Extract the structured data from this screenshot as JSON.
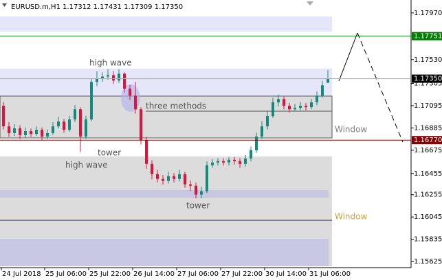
{
  "chart_data": {
    "type": "candlestick",
    "title": "EURUSD.m,H1  1.17312 1.17431 1.17309 1.17350",
    "xlim": [
      -0.625,
      74.125
    ],
    "ylim": [
      1.15567,
      1.18092
    ],
    "xticks": [
      {
        "value": -0.375,
        "label": "24 Jul 2018"
      },
      {
        "value": 7.5,
        "label": "25 Jul 06:00"
      },
      {
        "value": 15.5,
        "label": "25 Jul 22:00"
      },
      {
        "value": 23.5,
        "label": "26 Jul 14:00"
      },
      {
        "value": 31.5,
        "label": "27 Jul 06:00"
      },
      {
        "value": 39.5,
        "label": "27 Jul 22:00"
      },
      {
        "value": 47.5,
        "label": "30 Jul 14:00"
      },
      {
        "value": 55.5,
        "label": "31 Jul 06:00"
      }
    ],
    "yticks": [
      {
        "value": 1.1797,
        "label": "1.17970"
      },
      {
        "value": 1.1753,
        "label": "1.17530"
      },
      {
        "value": 1.17305,
        "label": "1.17305"
      },
      {
        "value": 1.17095,
        "label": "1.17095"
      },
      {
        "value": 1.16885,
        "label": "1.16885"
      },
      {
        "value": 1.16675,
        "label": "1.16675"
      },
      {
        "value": 1.16455,
        "label": "1.16455"
      },
      {
        "value": 1.16255,
        "label": "1.16255"
      },
      {
        "value": 1.16045,
        "label": "1.16045"
      },
      {
        "value": 1.15835,
        "label": "1.15835"
      },
      {
        "value": 1.15625,
        "label": "1.15625"
      }
    ],
    "hlines": [
      {
        "value": 1.17751,
        "label": "1.17751",
        "color": "#008000"
      },
      {
        "value": 1.1677,
        "label": "1.16770",
        "color": "#8b0000"
      },
      {
        "value": 1.1735,
        "label": "1.17350",
        "color": "#000000"
      }
    ],
    "up_color": "#14897c",
    "down_color": "#dc143c",
    "open": [
      1.17094,
      1.169,
      1.16836,
      1.16881,
      1.16817,
      1.16855,
      1.16829,
      1.16868,
      1.16804,
      1.16836,
      1.169,
      1.16945,
      1.16868,
      1.16965,
      1.17061,
      1.16804,
      1.16965,
      1.17319,
      1.17351,
      1.1737,
      1.17383,
      1.17332,
      1.17396,
      1.17255,
      1.1719,
      1.17061,
      1.16771,
      1.16546,
      1.16449,
      1.16404,
      1.16385,
      1.1643,
      1.16404,
      1.16449,
      1.16353,
      1.1634,
      1.16256,
      1.16288,
      1.16533,
      1.16559,
      1.16572,
      1.16559,
      1.16585,
      1.16572,
      1.16546,
      1.16597,
      1.16675,
      1.16804,
      1.169,
      1.16997,
      1.17126,
      1.17158,
      1.17094,
      1.17061,
      1.17074,
      1.17094,
      1.17081,
      1.17126,
      1.1719,
      1.17312
    ],
    "high": [
      1.1713,
      1.1694,
      1.1692,
      1.1691,
      1.1689,
      1.1688,
      1.169,
      1.1689,
      1.1687,
      1.1694,
      1.1699,
      1.1697,
      1.17,
      1.171,
      1.1708,
      1.17,
      1.1735,
      1.1742,
      1.1741,
      1.1744,
      1.1742,
      1.1744,
      1.1741,
      1.1729,
      1.1732,
      1.1708,
      1.168,
      1.1658,
      1.1649,
      1.1644,
      1.1647,
      1.1646,
      1.1649,
      1.1647,
      1.1639,
      1.1637,
      1.1633,
      1.1657,
      1.1659,
      1.166,
      1.166,
      1.1661,
      1.1661,
      1.166,
      1.1663,
      1.1671,
      1.1684,
      1.1695,
      1.1704,
      1.1717,
      1.172,
      1.1718,
      1.1712,
      1.1711,
      1.1713,
      1.1712,
      1.1716,
      1.1723,
      1.1733,
      1.17431
    ],
    "low": [
      1.1687,
      1.168,
      1.1681,
      1.1678,
      1.1679,
      1.168,
      1.1681,
      1.1677,
      1.1678,
      1.1682,
      1.1688,
      1.1684,
      1.1685,
      1.1694,
      1.1666,
      1.1678,
      1.1695,
      1.1728,
      1.1732,
      1.1734,
      1.173,
      1.1731,
      1.1722,
      1.1715,
      1.1702,
      1.1673,
      1.165,
      1.164,
      1.1637,
      1.1635,
      1.1636,
      1.1637,
      1.1638,
      1.1632,
      1.1629,
      1.1622,
      1.1622,
      1.1627,
      1.1651,
      1.1653,
      1.1653,
      1.1653,
      1.1654,
      1.1651,
      1.1652,
      1.1657,
      1.1665,
      1.1678,
      1.1687,
      1.1698,
      1.1709,
      1.1706,
      1.1703,
      1.1704,
      1.1705,
      1.1705,
      1.1706,
      1.171,
      1.1717,
      1.17309
    ],
    "close": [
      1.169,
      1.16836,
      1.16881,
      1.16817,
      1.16855,
      1.16829,
      1.16868,
      1.16804,
      1.16836,
      1.169,
      1.16945,
      1.16868,
      1.16965,
      1.17061,
      1.16804,
      1.16965,
      1.17319,
      1.17351,
      1.1737,
      1.17383,
      1.17332,
      1.17396,
      1.17255,
      1.1719,
      1.17061,
      1.16771,
      1.16546,
      1.16449,
      1.16404,
      1.16385,
      1.1643,
      1.16404,
      1.16449,
      1.16353,
      1.1634,
      1.16256,
      1.16288,
      1.16533,
      1.16559,
      1.16572,
      1.16559,
      1.16585,
      1.16572,
      1.16546,
      1.16597,
      1.16675,
      1.16804,
      1.169,
      1.16997,
      1.17126,
      1.17158,
      1.17094,
      1.17061,
      1.17074,
      1.17094,
      1.17081,
      1.17126,
      1.1719,
      1.17287,
      1.1735
    ],
    "annotations": [
      "high wave",
      "three methods",
      "tower",
      "high wave",
      "tower",
      "Window",
      "Window"
    ]
  }
}
